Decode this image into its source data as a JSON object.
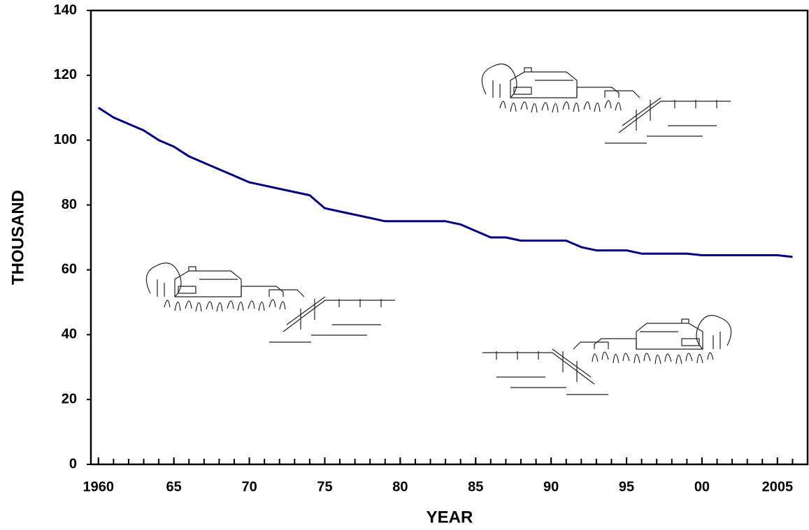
{
  "chart_data": {
    "type": "line",
    "x_label": "YEAR",
    "y_label": "THOUSAND",
    "x": [
      1960,
      1961,
      1962,
      1963,
      1964,
      1965,
      1966,
      1967,
      1968,
      1969,
      1970,
      1971,
      1972,
      1973,
      1974,
      1975,
      1976,
      1977,
      1978,
      1979,
      1980,
      1981,
      1982,
      1983,
      1984,
      1985,
      1986,
      1987,
      1988,
      1989,
      1990,
      1991,
      1992,
      1993,
      1994,
      1995,
      1996,
      1997,
      1998,
      1999,
      2000,
      2001,
      2002,
      2003,
      2004,
      2005,
      2006
    ],
    "series": [
      {
        "color": "#000080",
        "values": [
          110,
          107,
          105,
          103,
          100,
          98,
          95,
          93,
          91,
          89,
          87,
          86,
          85,
          84,
          83,
          79,
          78,
          77,
          76,
          75,
          75,
          75,
          75,
          75,
          74,
          72,
          70,
          70,
          69,
          69,
          69,
          69,
          67,
          66,
          66,
          66,
          65,
          65,
          65,
          65,
          64.5,
          64.5,
          64.5,
          64.5,
          64.5,
          64.5,
          64
        ]
      }
    ],
    "xlim": [
      1959.5,
      2007
    ],
    "xticks": [
      1960,
      {
        "value": 1965,
        "label": "65"
      },
      {
        "value": 1970,
        "label": "70"
      },
      {
        "value": 1975,
        "label": "75"
      },
      {
        "value": 1980,
        "label": "80"
      },
      {
        "value": 1985,
        "label": "85"
      },
      {
        "value": 1990,
        "label": "90"
      },
      {
        "value": 1995,
        "label": "95"
      },
      {
        "value": 2000,
        "label": "00"
      },
      2005
    ],
    "ylim": [
      0,
      140
    ],
    "yticks": [
      0,
      20,
      40,
      60,
      80,
      100,
      120,
      140
    ],
    "grid": false
  }
}
